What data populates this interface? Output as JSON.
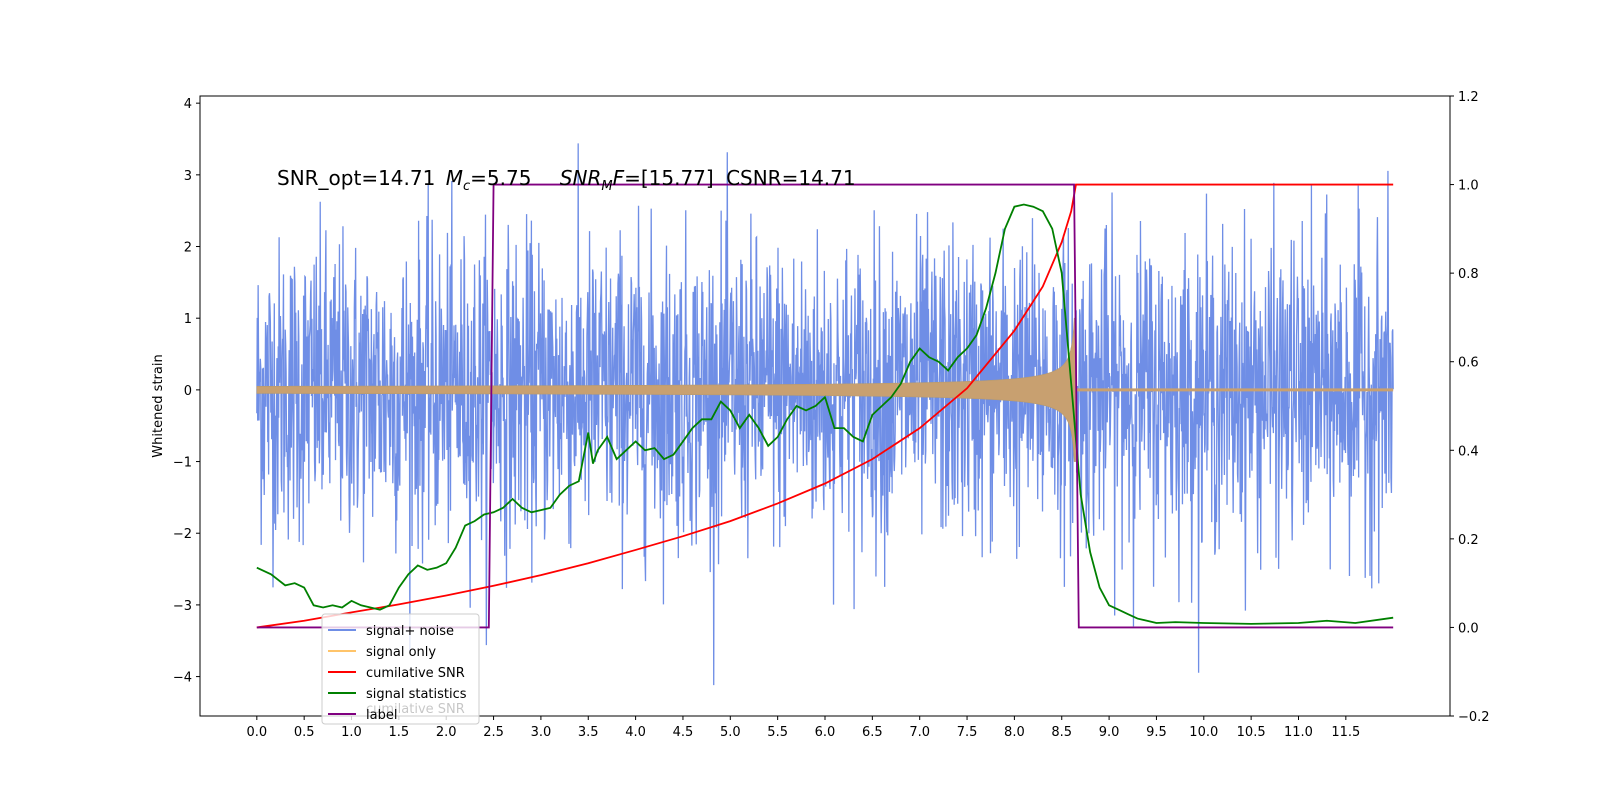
{
  "chart_data": {
    "type": "line",
    "annotation": {
      "snr_opt": "SNR_opt=14.71",
      "mc_symbol": "M",
      "mc_subscript": "c",
      "mc_value": "=5.75",
      "snr_mf_symbol": "SNR",
      "snr_mf_subscript": "M",
      "snr_mf_tail": "F",
      "snr_mf_value": "=[15.77]",
      "csnr": "CSNR=14.71"
    },
    "ylabel": "Whitened strain",
    "xlim": [
      -0.6,
      12.6
    ],
    "x_ticks": [
      0.0,
      0.5,
      1.0,
      1.5,
      2.0,
      2.5,
      3.0,
      3.5,
      4.0,
      4.5,
      5.0,
      5.5,
      6.0,
      6.5,
      7.0,
      7.5,
      8.0,
      8.5,
      9.0,
      9.5,
      10.0,
      10.5,
      11.0,
      11.5
    ],
    "x_tick_labels": [
      "0.0",
      "0.5",
      "1.0",
      "1.5",
      "2.0",
      "2.5",
      "3.0",
      "3.5",
      "4.0",
      "4.5",
      "5.0",
      "5.5",
      "6.0",
      "6.5",
      "7.0",
      "7.5",
      "8.0",
      "8.5",
      "9.0",
      "9.5",
      "10.0",
      "10.5",
      "11.0",
      "11.5"
    ],
    "y_left": {
      "lim": [
        -4.55,
        4.1
      ],
      "ticks": [
        4,
        3,
        2,
        1,
        0,
        -1,
        -2,
        -3,
        -4
      ],
      "tick_labels": [
        "4",
        "3",
        "2",
        "1",
        "0",
        "−1",
        "−2",
        "−3",
        "−4"
      ]
    },
    "y_right": {
      "lim": [
        -0.2,
        1.2
      ],
      "ticks": [
        1.2,
        1.0,
        0.8,
        0.6,
        0.4,
        0.2,
        0.0,
        -0.2
      ],
      "tick_labels": [
        "1.2",
        "1.0",
        "0.8",
        "0.6",
        "0.4",
        "0.2",
        "0.0",
        "−0.2"
      ]
    },
    "grid": false,
    "legend_placement": "lower-left",
    "legend": [
      {
        "label": "signal+ noise",
        "color": "#6f8ee6"
      },
      {
        "label": "signal only",
        "color": "#ffc46a"
      },
      {
        "label": "cumilative SNR",
        "color": "#ff0000"
      },
      {
        "label": "signal statistics",
        "color": "#008000"
      },
      {
        "label": "label",
        "color": "#800080"
      }
    ],
    "legend_ghost_text": "cumilative SNR",
    "series": [
      {
        "name": "signal+ noise",
        "axis": "left",
        "color": "#6f8ee6",
        "description_values": {
          "x_range": [
            0.0,
            12.0
          ],
          "amplitude_std": 1.0,
          "max": 3.72,
          "min": -4.12
        }
      },
      {
        "name": "signal only",
        "axis": "left",
        "color": "#c8a070",
        "chirp": {
          "start": 0.0,
          "merger": 8.65,
          "end": 12.0,
          "amp_start": 0.05,
          "amp_peak": 1.0
        }
      },
      {
        "name": "cumilative SNR",
        "axis": "right",
        "color": "#ff0000",
        "x": [
          0.0,
          0.5,
          1.0,
          1.5,
          2.0,
          2.5,
          3.0,
          3.5,
          4.0,
          4.5,
          5.0,
          5.5,
          6.0,
          6.5,
          7.0,
          7.5,
          8.0,
          8.3,
          8.5,
          8.6,
          8.65,
          9.0,
          10.0,
          11.0,
          12.0
        ],
        "y": [
          0.0,
          0.015,
          0.034,
          0.052,
          0.072,
          0.094,
          0.118,
          0.145,
          0.175,
          0.206,
          0.24,
          0.28,
          0.325,
          0.38,
          0.45,
          0.54,
          0.67,
          0.77,
          0.87,
          0.94,
          1.0,
          1.0,
          1.0,
          1.0,
          1.0
        ]
      },
      {
        "name": "signal statistics",
        "axis": "right",
        "color": "#008000",
        "x": [
          0.0,
          0.15,
          0.3,
          0.4,
          0.5,
          0.6,
          0.7,
          0.8,
          0.9,
          1.0,
          1.1,
          1.2,
          1.3,
          1.4,
          1.5,
          1.6,
          1.7,
          1.8,
          1.9,
          2.0,
          2.1,
          2.2,
          2.3,
          2.4,
          2.5,
          2.6,
          2.7,
          2.8,
          2.9,
          3.0,
          3.1,
          3.2,
          3.3,
          3.4,
          3.5,
          3.55,
          3.6,
          3.7,
          3.8,
          3.9,
          4.0,
          4.1,
          4.2,
          4.3,
          4.4,
          4.5,
          4.6,
          4.7,
          4.8,
          4.9,
          5.0,
          5.1,
          5.2,
          5.3,
          5.4,
          5.5,
          5.6,
          5.7,
          5.8,
          5.9,
          6.0,
          6.1,
          6.2,
          6.3,
          6.4,
          6.5,
          6.6,
          6.7,
          6.8,
          6.9,
          7.0,
          7.1,
          7.2,
          7.3,
          7.4,
          7.5,
          7.6,
          7.7,
          7.8,
          7.9,
          8.0,
          8.1,
          8.2,
          8.3,
          8.4,
          8.5,
          8.6,
          8.7,
          8.8,
          8.9,
          9.0,
          9.1,
          9.2,
          9.3,
          9.4,
          9.5,
          9.7,
          10.0,
          10.5,
          11.0,
          11.3,
          11.6,
          12.0
        ],
        "y": [
          0.135,
          0.12,
          0.095,
          0.1,
          0.09,
          0.05,
          0.045,
          0.05,
          0.045,
          0.06,
          0.05,
          0.045,
          0.04,
          0.05,
          0.09,
          0.12,
          0.14,
          0.13,
          0.135,
          0.145,
          0.18,
          0.23,
          0.24,
          0.255,
          0.26,
          0.27,
          0.29,
          0.27,
          0.26,
          0.265,
          0.27,
          0.3,
          0.32,
          0.33,
          0.44,
          0.37,
          0.4,
          0.43,
          0.38,
          0.4,
          0.42,
          0.4,
          0.405,
          0.38,
          0.39,
          0.42,
          0.45,
          0.47,
          0.47,
          0.51,
          0.49,
          0.45,
          0.48,
          0.45,
          0.41,
          0.43,
          0.47,
          0.5,
          0.49,
          0.5,
          0.52,
          0.45,
          0.45,
          0.43,
          0.42,
          0.48,
          0.5,
          0.52,
          0.55,
          0.6,
          0.63,
          0.61,
          0.6,
          0.58,
          0.61,
          0.63,
          0.66,
          0.72,
          0.8,
          0.9,
          0.95,
          0.955,
          0.95,
          0.94,
          0.9,
          0.8,
          0.55,
          0.3,
          0.17,
          0.09,
          0.05,
          0.04,
          0.03,
          0.02,
          0.015,
          0.01,
          0.012,
          0.01,
          0.008,
          0.01,
          0.015,
          0.01,
          0.022
        ]
      },
      {
        "name": "label",
        "axis": "right",
        "color": "#800080",
        "x": [
          0.0,
          2.45,
          2.5,
          8.63,
          8.68,
          12.0
        ],
        "y": [
          0.0,
          0.0,
          1.0,
          1.0,
          0.0,
          0.0
        ]
      }
    ]
  }
}
